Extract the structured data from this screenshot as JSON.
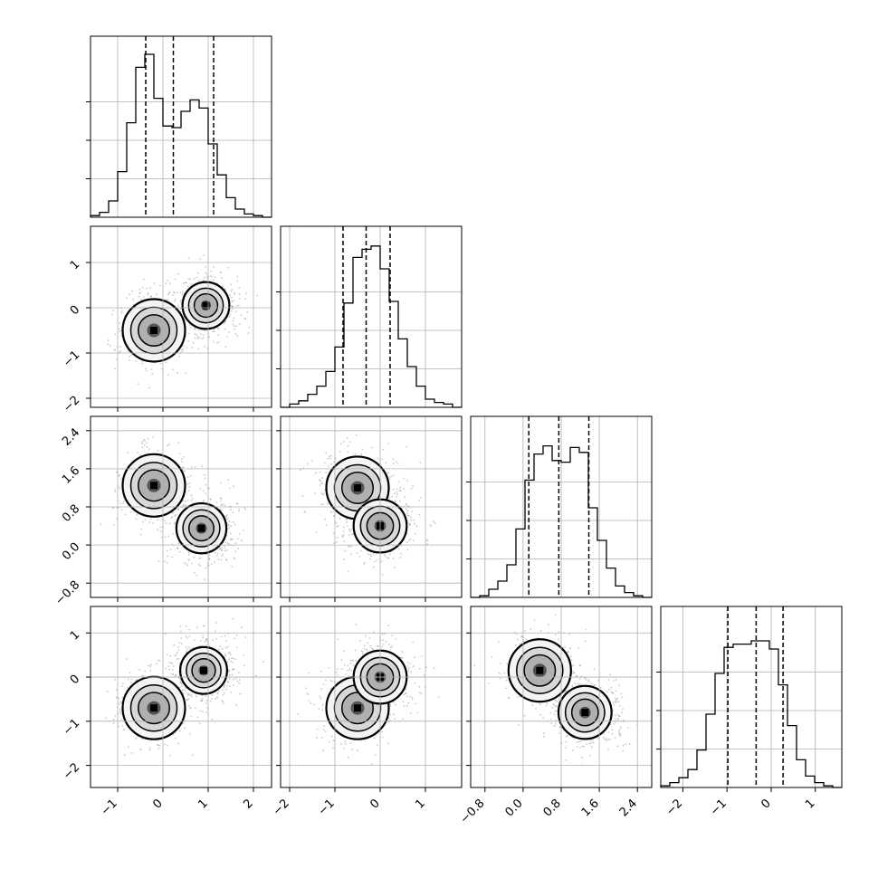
{
  "chart_data": {
    "type": "corner",
    "grid": true,
    "variables": [
      {
        "index": 0,
        "range": [
          -1.6,
          2.4
        ],
        "ticks": [
          -1,
          0,
          1,
          2
        ],
        "tick_labels": [
          "−1",
          "0",
          "1",
          "2"
        ],
        "quantiles": [
          -0.38,
          0.23,
          1.12
        ]
      },
      {
        "index": 1,
        "range": [
          -2.2,
          1.8
        ],
        "ticks": [
          -2,
          -1,
          0,
          1
        ],
        "tick_labels": [
          "−2",
          "−1",
          "0",
          "1"
        ],
        "quantiles": [
          -0.82,
          -0.31,
          0.22
        ]
      },
      {
        "index": 2,
        "range": [
          -1.1,
          2.7
        ],
        "ticks": [
          -0.8,
          0.0,
          0.8,
          1.6,
          2.4
        ],
        "tick_labels": [
          "−0.8",
          "0.0",
          "0.8",
          "1.6",
          "2.4"
        ],
        "quantiles": [
          0.12,
          0.75,
          1.38
        ]
      },
      {
        "index": 3,
        "range": [
          -2.5,
          1.6
        ],
        "ticks": [
          -2,
          -1,
          0,
          1
        ],
        "tick_labels": [
          "−2",
          "−1",
          "0",
          "1"
        ],
        "quantiles": [
          -0.98,
          -0.34,
          0.27
        ]
      }
    ],
    "histograms": [
      {
        "var": 0,
        "counts": [
          0.01,
          0.03,
          0.1,
          0.28,
          0.58,
          0.92,
          1.0,
          0.73,
          0.56,
          0.55,
          0.65,
          0.72,
          0.67,
          0.45,
          0.26,
          0.12,
          0.05,
          0.02,
          0.01,
          0.0
        ]
      },
      {
        "var": 1,
        "counts": [
          0.0,
          0.02,
          0.04,
          0.08,
          0.13,
          0.22,
          0.37,
          0.64,
          0.92,
          0.97,
          0.99,
          0.85,
          0.65,
          0.42,
          0.25,
          0.13,
          0.05,
          0.03,
          0.02,
          0.0
        ]
      },
      {
        "var": 2,
        "counts": [
          0.0,
          0.01,
          0.05,
          0.1,
          0.2,
          0.42,
          0.72,
          0.88,
          0.93,
          0.84,
          0.83,
          0.92,
          0.89,
          0.55,
          0.35,
          0.18,
          0.07,
          0.03,
          0.01,
          0.0
        ]
      },
      {
        "var": 3,
        "counts": [
          0.01,
          0.03,
          0.06,
          0.11,
          0.23,
          0.45,
          0.7,
          0.86,
          0.88,
          0.88,
          0.9,
          0.9,
          0.85,
          0.63,
          0.38,
          0.17,
          0.07,
          0.03,
          0.01,
          0.0
        ]
      }
    ],
    "pair_modes": [
      {
        "row": 1,
        "col": 0,
        "modes": [
          [
            -0.2,
            -0.5,
            1.0
          ],
          [
            0.95,
            0.05,
            0.75
          ]
        ]
      },
      {
        "row": 2,
        "col": 0,
        "modes": [
          [
            -0.2,
            1.25,
            1.0
          ],
          [
            0.85,
            0.35,
            0.8
          ]
        ]
      },
      {
        "row": 2,
        "col": 1,
        "modes": [
          [
            -0.5,
            1.2,
            1.0
          ],
          [
            0.0,
            0.4,
            0.85
          ]
        ]
      },
      {
        "row": 3,
        "col": 0,
        "modes": [
          [
            -0.2,
            -0.7,
            1.0
          ],
          [
            0.9,
            0.15,
            0.75
          ]
        ]
      },
      {
        "row": 3,
        "col": 1,
        "modes": [
          [
            -0.5,
            -0.7,
            1.0
          ],
          [
            0.0,
            0.0,
            0.85
          ]
        ]
      },
      {
        "row": 3,
        "col": 2,
        "modes": [
          [
            0.35,
            0.15,
            1.0
          ],
          [
            1.3,
            -0.8,
            0.85
          ]
        ]
      }
    ]
  }
}
